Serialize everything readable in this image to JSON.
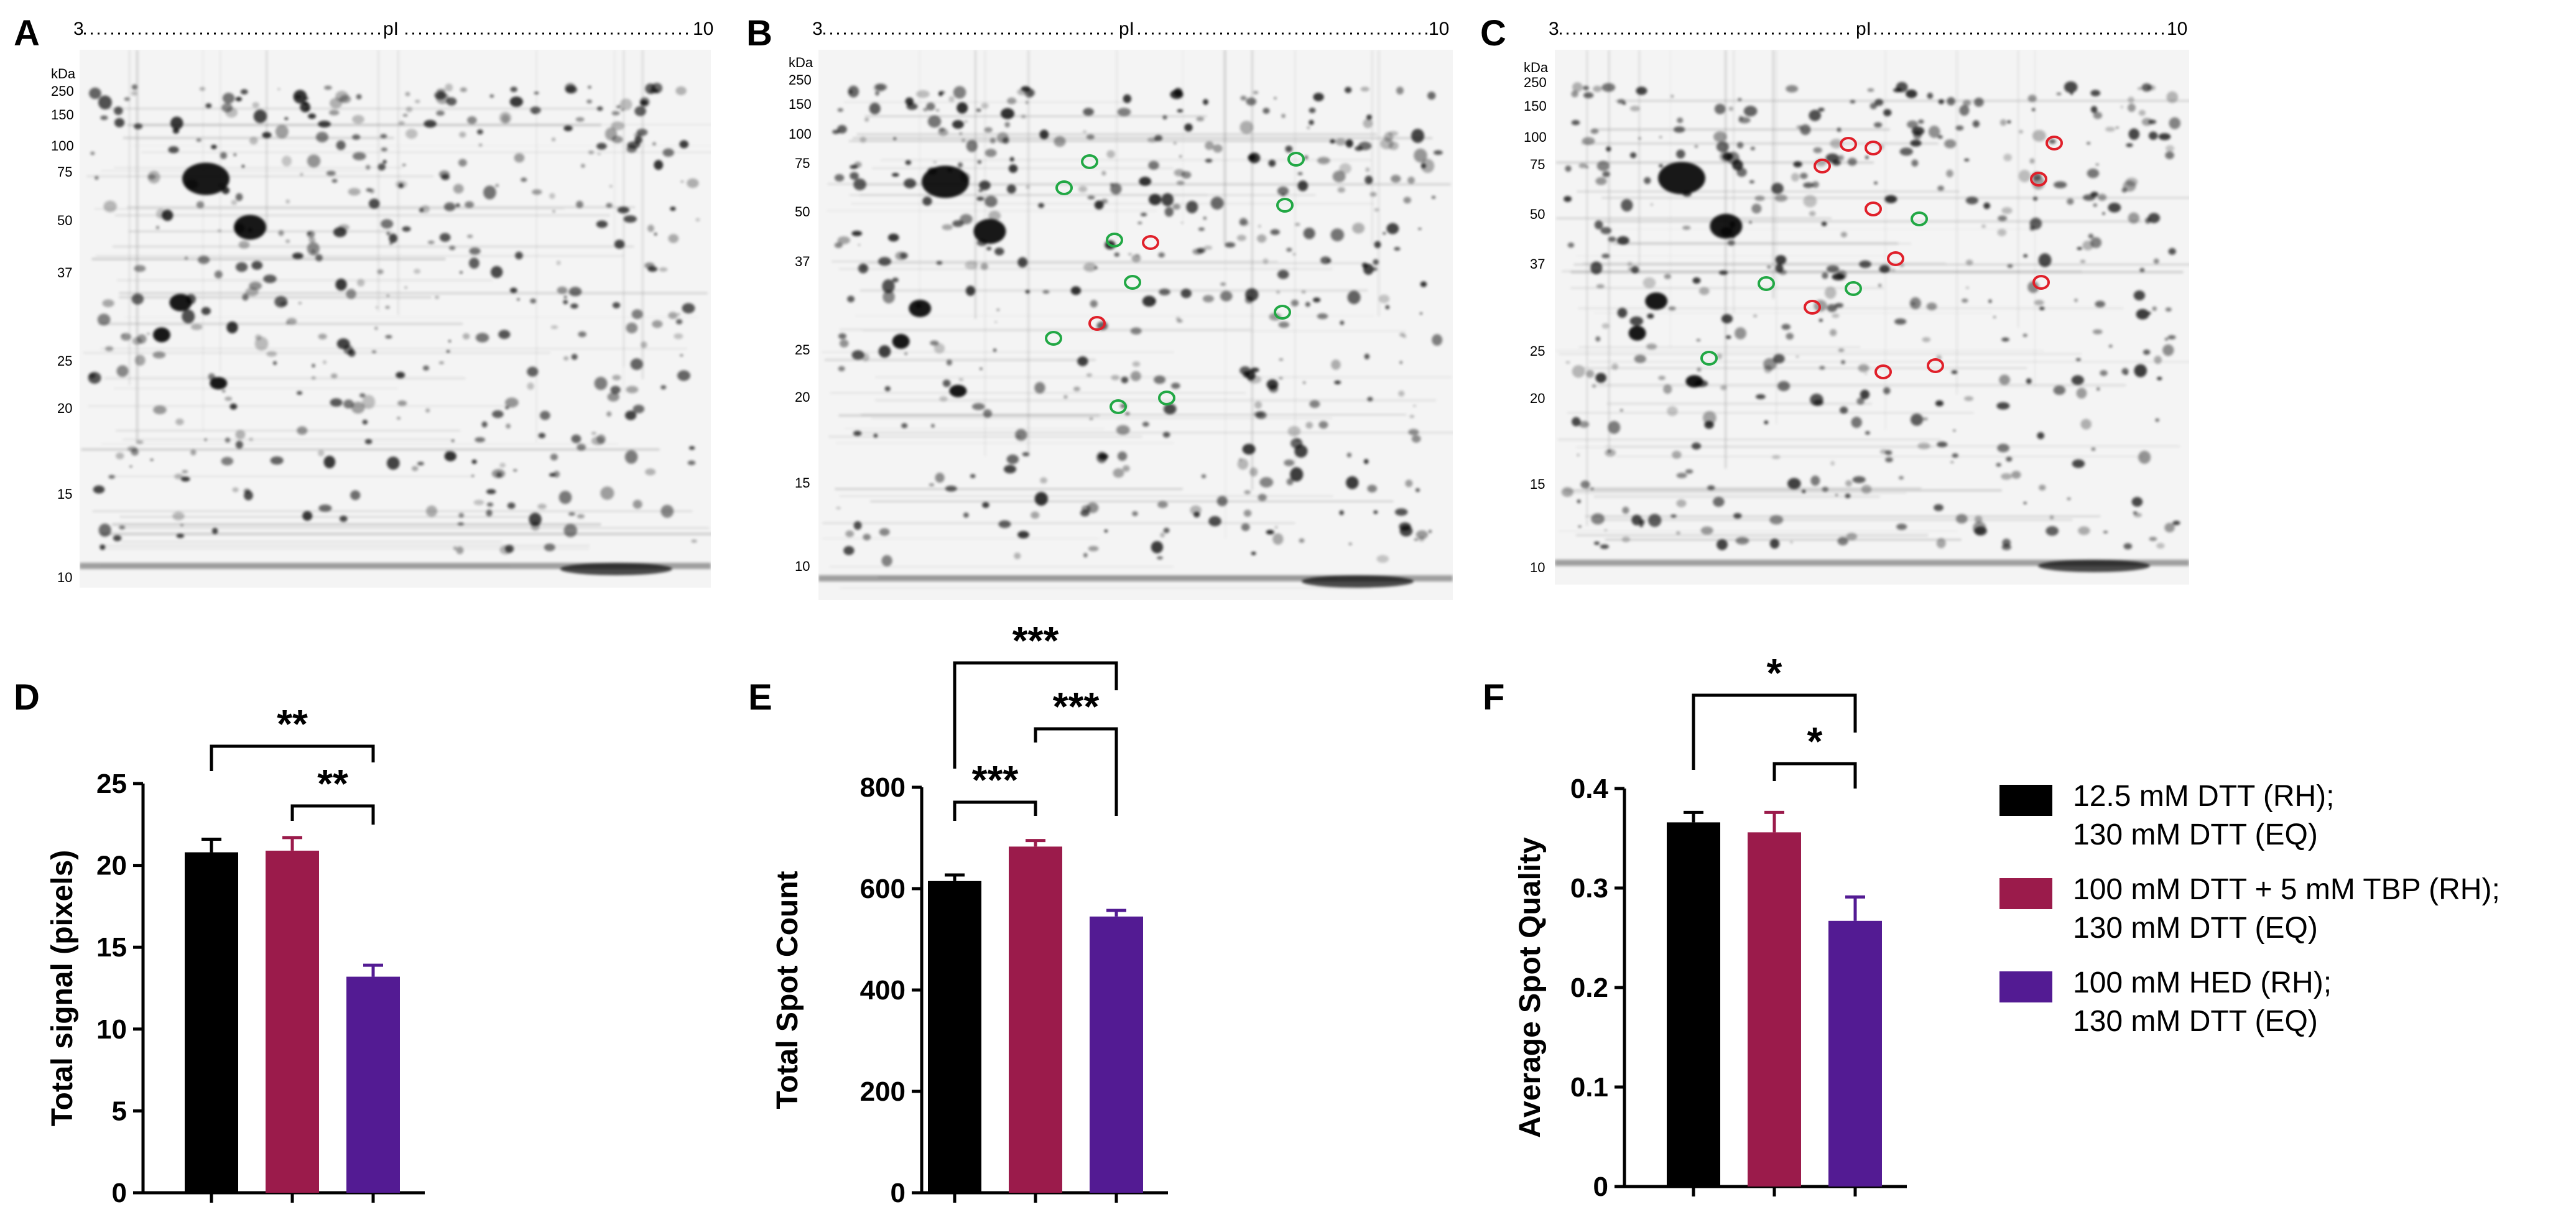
{
  "gels": [
    {
      "letter": "A",
      "pi_left": "3",
      "pi_mid": "pI",
      "pi_right": "10",
      "kda_unit": "kDa",
      "kda": [
        "250",
        "150",
        "100",
        "75",
        "50",
        "37",
        "25",
        "20",
        "15",
        "10"
      ]
    },
    {
      "letter": "B",
      "pi_left": "3",
      "pi_mid": "pI",
      "pi_right": "10",
      "kda_unit": "kDa",
      "kda": [
        "250",
        "150",
        "100",
        "75",
        "50",
        "37",
        "25",
        "20",
        "15",
        "10"
      ]
    },
    {
      "letter": "C",
      "pi_left": "3",
      "pi_mid": "pI",
      "pi_right": "10",
      "kda_unit": "kDa",
      "kda": [
        "250",
        "150",
        "100",
        "75",
        "50",
        "37",
        "25",
        "20",
        "15",
        "10"
      ]
    }
  ],
  "colors": {
    "series1": "#000000",
    "series2": "#9b1b4b",
    "series3": "#531b93",
    "circle_green": "#22a845",
    "circle_red": "#e0202a"
  },
  "legend": {
    "items": [
      {
        "line1": "12.5 mM DTT (RH);",
        "line2": "130 mM DTT (EQ)"
      },
      {
        "line1": "100 mM DTT + 5 mM TBP (RH);",
        "line2": "130 mM DTT (EQ)"
      },
      {
        "line1": "100 mM HED (RH);",
        "line2": "130 mM DTT (EQ)"
      }
    ]
  },
  "chart_data": [
    {
      "panel": "D",
      "type": "bar",
      "ylabel": "Total signal (pixels)",
      "ylim": [
        0,
        25
      ],
      "yticks": [
        "0",
        "5",
        "10",
        "15",
        "20",
        "25"
      ],
      "values": [
        20.8,
        20.9,
        13.2
      ],
      "errors": [
        0.8,
        0.8,
        0.7
      ],
      "significance": [
        {
          "from": 0,
          "to": 2,
          "label": "**"
        },
        {
          "from": 1,
          "to": 2,
          "label": "**"
        }
      ]
    },
    {
      "panel": "E",
      "type": "bar",
      "ylabel": "Total Spot Count",
      "ylim": [
        0,
        800
      ],
      "yticks": [
        "0",
        "200",
        "400",
        "600",
        "800"
      ],
      "values": [
        615,
        683,
        545
      ],
      "errors": [
        12,
        12,
        12
      ],
      "significance": [
        {
          "from": 0,
          "to": 1,
          "label": "***"
        },
        {
          "from": 1,
          "to": 2,
          "label": "***"
        },
        {
          "from": 0,
          "to": 2,
          "label": "***"
        }
      ]
    },
    {
      "panel": "F",
      "type": "bar",
      "ylabel": "Average Spot Quality",
      "ylim": [
        0,
        0.4
      ],
      "yticks": [
        "0",
        "0.1",
        "0.2",
        "0.3",
        "0.4"
      ],
      "values": [
        0.366,
        0.356,
        0.267
      ],
      "errors": [
        0.01,
        0.02,
        0.024
      ],
      "significance": [
        {
          "from": 0,
          "to": 2,
          "label": "*"
        },
        {
          "from": 1,
          "to": 2,
          "label": "*"
        }
      ]
    }
  ]
}
